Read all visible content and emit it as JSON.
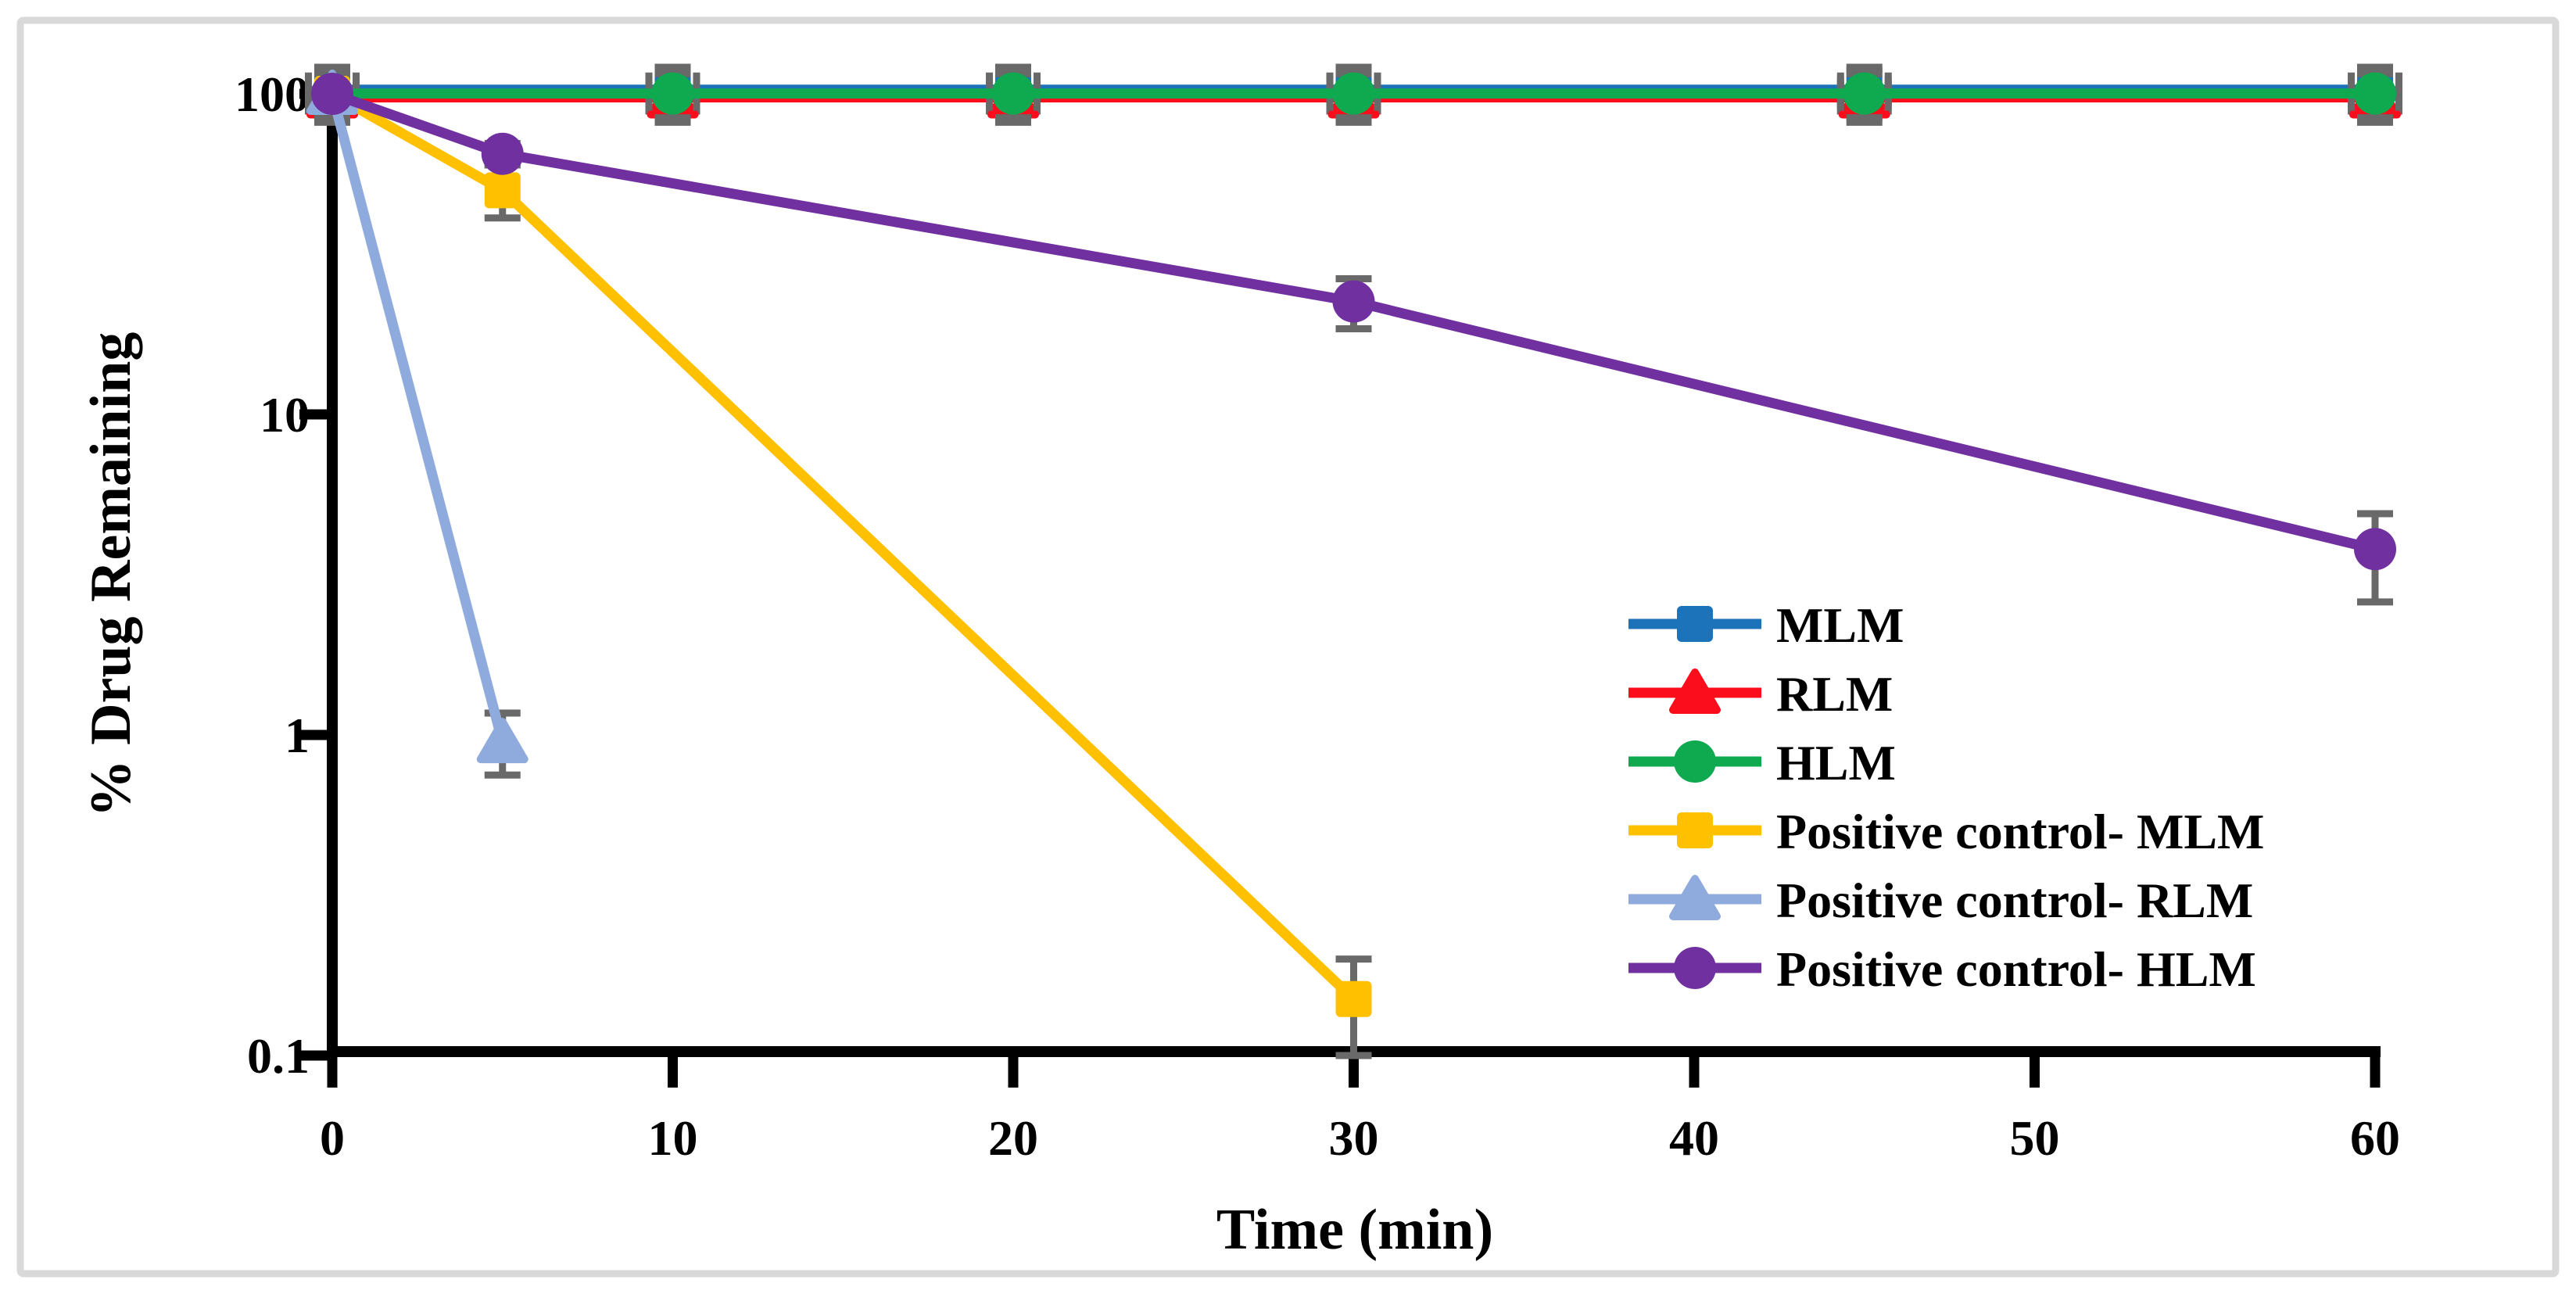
{
  "chart_data": {
    "type": "line",
    "title": "",
    "xlabel": "Time (min)",
    "ylabel": "% Drug Remaining",
    "x_scale": "linear",
    "y_scale": "log",
    "xlim": [
      0,
      60
    ],
    "ylim": [
      0.1,
      100
    ],
    "x_ticks": [
      0,
      10,
      20,
      30,
      40,
      50,
      60
    ],
    "y_ticks": [
      100,
      10,
      1,
      0.1
    ],
    "grid": false,
    "legend_position": "inside-right",
    "style": {
      "axis_color": "#000000",
      "frame_color": "#D9D9D9",
      "errorbar_color": "#696969",
      "background": "#FFFFFF"
    },
    "series": [
      {
        "name": "MLM",
        "color": "#1C73B9",
        "marker": "square",
        "x": [
          0,
          10,
          20,
          30,
          45,
          60
        ],
        "y": [
          100,
          100,
          100,
          100,
          100,
          100
        ],
        "yerr_plus": [
          18,
          18,
          18,
          18,
          18,
          18
        ],
        "yerr_minus": [
          16,
          16,
          16,
          16,
          16,
          16
        ],
        "xerr": 0.7
      },
      {
        "name": "RLM",
        "color": "#FB0D1C",
        "marker": "triangle",
        "x": [
          0,
          10,
          20,
          30,
          45,
          60
        ],
        "y": [
          100,
          100,
          100,
          100,
          100,
          100
        ],
        "yerr_plus": [
          18,
          18,
          18,
          18,
          18,
          18
        ],
        "yerr_minus": [
          16,
          16,
          16,
          16,
          16,
          16
        ],
        "xerr": 0.7
      },
      {
        "name": "HLM",
        "color": "#0FA950",
        "marker": "circle",
        "x": [
          0,
          10,
          20,
          30,
          45,
          60
        ],
        "y": [
          100,
          100,
          100,
          100,
          100,
          100
        ],
        "yerr_plus": [
          18,
          18,
          18,
          18,
          18,
          18
        ],
        "yerr_minus": [
          16,
          16,
          16,
          16,
          16,
          16
        ],
        "xerr": 0.7
      },
      {
        "name": "Positive control- MLM",
        "color": "#FFC000",
        "marker": "square",
        "x": [
          0,
          5,
          30
        ],
        "y": [
          100,
          50,
          0.15
        ],
        "yerr_plus": [
          2,
          10,
          0.05
        ],
        "yerr_minus": [
          2,
          9,
          0.05
        ],
        "xerr": 0
      },
      {
        "name": "Positive control- RLM",
        "color": "#8FAADC",
        "marker": "triangle",
        "x": [
          0,
          5
        ],
        "y": [
          100,
          0.95
        ],
        "yerr_plus": [
          2,
          0.22
        ],
        "yerr_minus": [
          2,
          0.2
        ],
        "xerr": 0
      },
      {
        "name": "Positive control- HLM",
        "color": "#7030A0",
        "marker": "circle",
        "x": [
          0,
          5,
          30,
          60
        ],
        "y": [
          100,
          65,
          22.5,
          3.8
        ],
        "yerr_plus": [
          2,
          5,
          4,
          1.1
        ],
        "yerr_minus": [
          2,
          5,
          4,
          1.2
        ],
        "xerr": 0
      }
    ]
  }
}
